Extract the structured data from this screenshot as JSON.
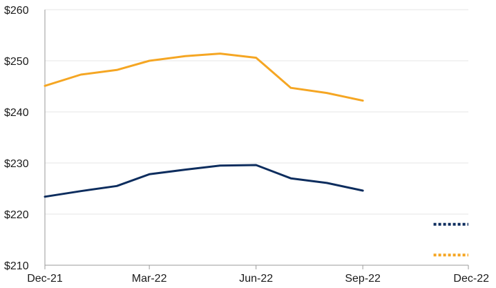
{
  "chart_data": {
    "type": "line",
    "title": "",
    "xlabel": "",
    "ylabel": "",
    "grid": true,
    "ylim": [
      210,
      260
    ],
    "yticks": [
      210,
      220,
      230,
      240,
      250,
      260
    ],
    "ytick_labels": [
      "$210",
      "$220",
      "$230",
      "$240",
      "$250",
      "$260"
    ],
    "xlim": [
      "2021-12-01",
      "2022-12-01"
    ],
    "xticks": [
      {
        "date": "2021-12-01",
        "label": "Dec-21"
      },
      {
        "date": "2022-03-01",
        "label": "Mar-22"
      },
      {
        "date": "2022-06-01",
        "label": "Jun-22"
      },
      {
        "date": "2022-09-01",
        "label": "Sep-22"
      },
      {
        "date": "2022-12-01",
        "label": "Dec-22"
      }
    ],
    "series": [
      {
        "color": "#f5a623",
        "style": "solid",
        "points": [
          {
            "x": "2021-12-01",
            "y": 245.1
          },
          {
            "x": "2022-01-01",
            "y": 247.3
          },
          {
            "x": "2022-02-01",
            "y": 248.2
          },
          {
            "x": "2022-03-01",
            "y": 250.0
          },
          {
            "x": "2022-04-01",
            "y": 250.9
          },
          {
            "x": "2022-05-01",
            "y": 251.4
          },
          {
            "x": "2022-06-01",
            "y": 250.6
          },
          {
            "x": "2022-07-01",
            "y": 244.7
          },
          {
            "x": "2022-08-01",
            "y": 243.7
          },
          {
            "x": "2022-09-01",
            "y": 242.2
          }
        ]
      },
      {
        "color": "#0d2d5e",
        "style": "solid",
        "points": [
          {
            "x": "2021-12-01",
            "y": 223.4
          },
          {
            "x": "2022-01-01",
            "y": 224.5
          },
          {
            "x": "2022-02-01",
            "y": 225.5
          },
          {
            "x": "2022-03-01",
            "y": 227.8
          },
          {
            "x": "2022-04-01",
            "y": 228.7
          },
          {
            "x": "2022-05-01",
            "y": 229.5
          },
          {
            "x": "2022-06-01",
            "y": 229.6
          },
          {
            "x": "2022-07-01",
            "y": 227.0
          },
          {
            "x": "2022-08-01",
            "y": 226.1
          },
          {
            "x": "2022-09-01",
            "y": 224.6
          }
        ]
      },
      {
        "color": "#0d2d5e",
        "style": "dotted",
        "points": [
          {
            "x": "2022-11-01",
            "y": 218.0
          },
          {
            "x": "2022-12-01",
            "y": 218.0
          }
        ]
      },
      {
        "color": "#f5a623",
        "style": "dotted",
        "points": [
          {
            "x": "2022-11-01",
            "y": 212.0
          },
          {
            "x": "2022-12-01",
            "y": 212.0
          }
        ]
      }
    ]
  }
}
